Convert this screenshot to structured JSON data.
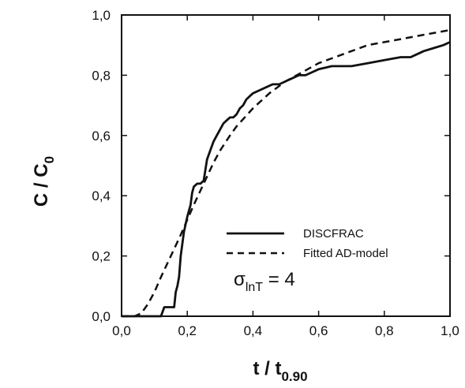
{
  "chart_data": {
    "type": "line",
    "title": "",
    "xlabel": {
      "main": "t / t",
      "subscript": "0.90"
    },
    "ylabel": {
      "main": "C / C",
      "subscript": "0"
    },
    "xlim": [
      0,
      1.0
    ],
    "ylim": [
      0,
      1.0
    ],
    "x_ticks": [
      {
        "value": 0.0,
        "label": "0,0"
      },
      {
        "value": 0.2,
        "label": "0,2"
      },
      {
        "value": 0.4,
        "label": "0,4"
      },
      {
        "value": 0.6,
        "label": "0,6"
      },
      {
        "value": 0.8,
        "label": "0,8"
      },
      {
        "value": 1.0,
        "label": "1,0"
      }
    ],
    "y_ticks": [
      {
        "value": 0.0,
        "label": "0,0"
      },
      {
        "value": 0.2,
        "label": "0,2"
      },
      {
        "value": 0.4,
        "label": "0,4"
      },
      {
        "value": 0.6,
        "label": "0,6"
      },
      {
        "value": 0.8,
        "label": "0,8"
      },
      {
        "value": 1.0,
        "label": "1,0"
      }
    ],
    "grid": false,
    "legend_position": "center-right",
    "series": [
      {
        "name": "DISCFRAC",
        "style": "solid",
        "color": "#111111",
        "x": [
          0.0,
          0.12,
          0.13,
          0.16,
          0.165,
          0.17,
          0.175,
          0.18,
          0.19,
          0.2,
          0.21,
          0.215,
          0.22,
          0.23,
          0.24,
          0.25,
          0.26,
          0.27,
          0.28,
          0.29,
          0.3,
          0.31,
          0.32,
          0.33,
          0.34,
          0.35,
          0.36,
          0.37,
          0.38,
          0.39,
          0.4,
          0.42,
          0.44,
          0.46,
          0.48,
          0.5,
          0.52,
          0.54,
          0.56,
          0.58,
          0.6,
          0.62,
          0.64,
          0.66,
          0.7,
          0.75,
          0.8,
          0.85,
          0.88,
          0.9,
          0.92,
          0.95,
          0.98,
          1.0
        ],
        "y": [
          0.0,
          0.0,
          0.03,
          0.03,
          0.08,
          0.1,
          0.13,
          0.2,
          0.28,
          0.33,
          0.37,
          0.41,
          0.43,
          0.44,
          0.44,
          0.45,
          0.52,
          0.55,
          0.58,
          0.6,
          0.62,
          0.64,
          0.65,
          0.66,
          0.66,
          0.67,
          0.69,
          0.7,
          0.72,
          0.73,
          0.74,
          0.75,
          0.76,
          0.77,
          0.77,
          0.78,
          0.79,
          0.8,
          0.8,
          0.81,
          0.82,
          0.825,
          0.83,
          0.83,
          0.83,
          0.84,
          0.85,
          0.86,
          0.86,
          0.87,
          0.88,
          0.89,
          0.9,
          0.91
        ]
      },
      {
        "name": "Fitted AD-model",
        "style": "dashed",
        "color": "#111111",
        "x": [
          0.0,
          0.04,
          0.06,
          0.08,
          0.1,
          0.12,
          0.15,
          0.18,
          0.2,
          0.22,
          0.25,
          0.28,
          0.3,
          0.33,
          0.35,
          0.4,
          0.45,
          0.5,
          0.55,
          0.6,
          0.65,
          0.7,
          0.75,
          0.8,
          0.85,
          0.9,
          0.95,
          1.0
        ],
        "y": [
          0.0,
          0.0,
          0.01,
          0.04,
          0.08,
          0.13,
          0.2,
          0.27,
          0.32,
          0.37,
          0.44,
          0.51,
          0.55,
          0.6,
          0.63,
          0.69,
          0.74,
          0.78,
          0.81,
          0.84,
          0.86,
          0.88,
          0.9,
          0.91,
          0.92,
          0.93,
          0.94,
          0.95
        ]
      }
    ],
    "annotation": {
      "symbol": "σ",
      "subscript": "lnT",
      "suffix": " = 4"
    }
  }
}
